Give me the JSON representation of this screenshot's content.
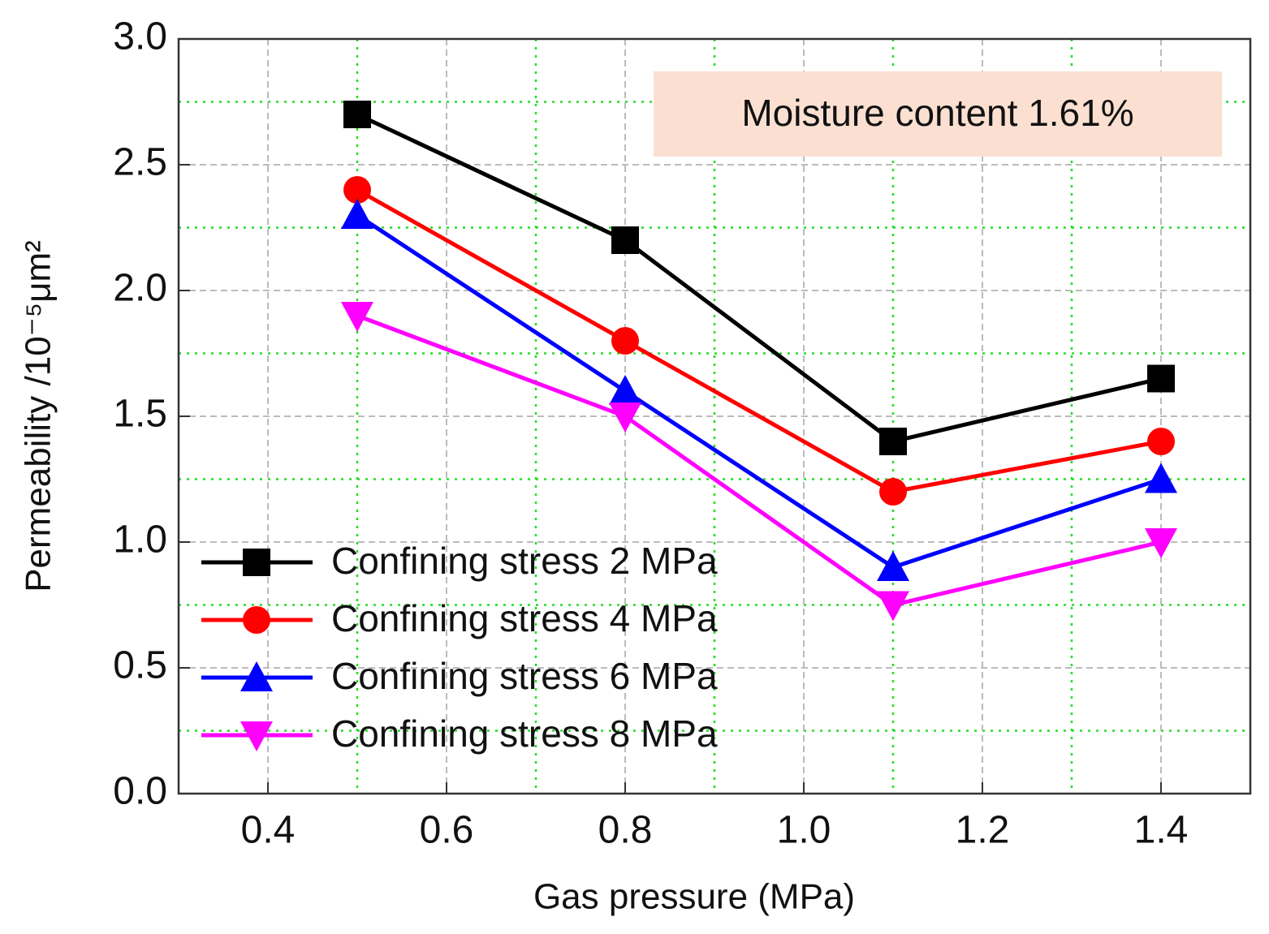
{
  "chart_data": {
    "type": "line",
    "xlabel": "Gas pressure (MPa)",
    "ylabel": "Permeability /10⁻⁵μm²",
    "annotation": "Moisture content  1.61%",
    "x": [
      0.5,
      0.8,
      1.1,
      1.4
    ],
    "series": [
      {
        "name": "Confining stress 2 MPa",
        "color": "#000000",
        "marker": "square",
        "values": [
          2.7,
          2.2,
          1.4,
          1.65
        ]
      },
      {
        "name": "Confining stress 4 MPa",
        "color": "#ff0000",
        "marker": "circle",
        "values": [
          2.4,
          1.8,
          1.2,
          1.4
        ]
      },
      {
        "name": "Confining stress 6 MPa",
        "color": "#0000ff",
        "marker": "triangle-up",
        "values": [
          2.3,
          1.6,
          0.9,
          1.25
        ]
      },
      {
        "name": "Confining stress 8 MPa",
        "color": "#ff00ff",
        "marker": "triangle-down",
        "values": [
          1.9,
          1.5,
          0.75,
          1.0
        ]
      }
    ],
    "xlim": [
      0.3,
      1.5
    ],
    "ylim": [
      0,
      3
    ],
    "xticks": [
      0.4,
      0.6,
      0.8,
      {
        "value": 1,
        "label": "1.0"
      },
      1.2,
      1.4
    ],
    "yticks": [
      {
        "value": 0,
        "label": "0.0"
      },
      0.5,
      {
        "value": 1,
        "label": "1.0"
      },
      1.5,
      {
        "value": 2,
        "label": "2.0"
      },
      2.5,
      {
        "value": 3,
        "label": "3.0"
      }
    ],
    "xminorticks": [
      0.5,
      0.7,
      0.9,
      1.1,
      1.3
    ],
    "yminorticks": [
      0.25,
      0.75,
      1.25,
      1.75,
      2.25,
      2.75
    ],
    "grid": true,
    "grid_color": "#bbbbbb",
    "minor_grid_color": "#22dd22",
    "legend": "lower left"
  }
}
